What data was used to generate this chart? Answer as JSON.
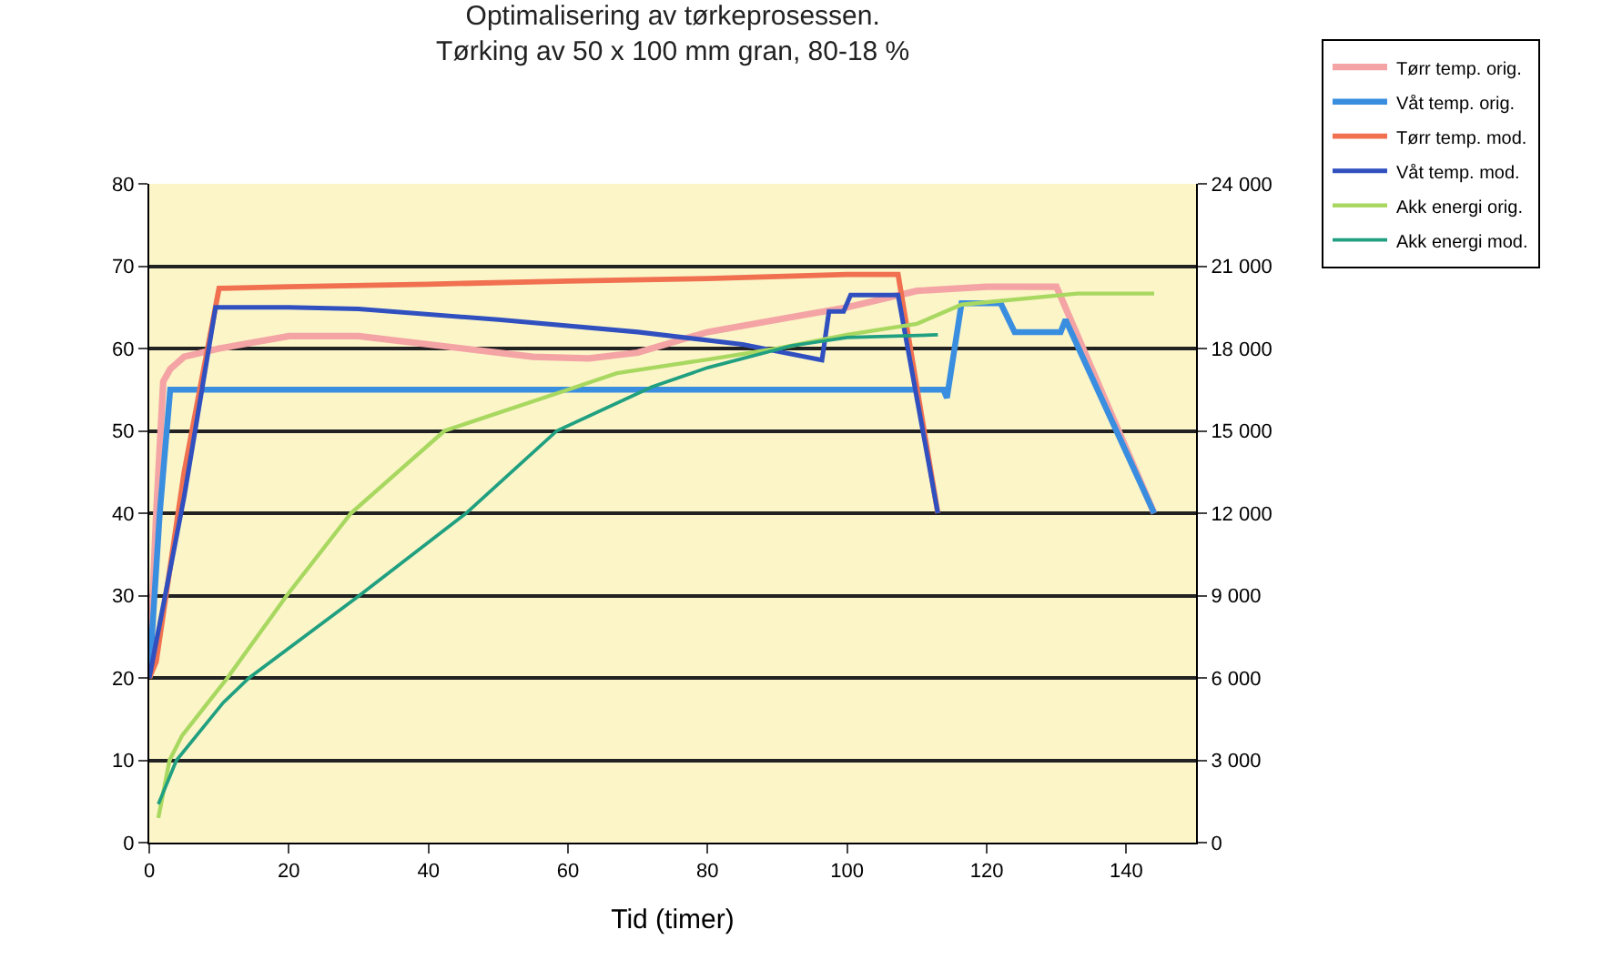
{
  "chart_data": {
    "type": "line",
    "title": "Optimalisering av tørkeprosessen.\nTørking av 50 x 100 mm gran, 80-18 %",
    "xlabel": "Tid (timer)",
    "xlim": [
      0,
      150
    ],
    "xticks": [
      0,
      20,
      40,
      60,
      80,
      100,
      120,
      140
    ],
    "ylim": [
      0,
      80
    ],
    "yticks": [
      0,
      10,
      20,
      30,
      40,
      50,
      60,
      70,
      80
    ],
    "y2lim": [
      0,
      24000
    ],
    "y2ticks": [
      {
        "value": 0,
        "label": "0"
      },
      {
        "value": 3000,
        "label": "3 000"
      },
      {
        "value": 6000,
        "label": "6 000"
      },
      {
        "value": 9000,
        "label": "9 000"
      },
      {
        "value": 12000,
        "label": "12 000"
      },
      {
        "value": 15000,
        "label": "15 000"
      },
      {
        "value": 18000,
        "label": "18 000"
      },
      {
        "value": 21000,
        "label": "21 000"
      },
      {
        "value": 24000,
        "label": "24 000"
      }
    ],
    "grid": "y",
    "legend": "top right",
    "marker": "none",
    "line_style": "solid",
    "series": [
      {
        "name": "Tørr temp. orig.",
        "color": "#f4a4a4",
        "x": [
          0,
          1,
          2,
          3,
          5,
          10,
          20,
          30,
          45,
          55,
          63,
          70,
          80,
          90,
          100,
          110,
          120,
          130,
          144
        ],
        "values": [
          20,
          40,
          56,
          57.5,
          59,
          60,
          61.5,
          61.5,
          60,
          59,
          58.8,
          59.5,
          62,
          63.5,
          65,
          67,
          67.5,
          67.5,
          40
        ]
      },
      {
        "name": "Våt temp. orig.",
        "color": "#3a8ee0",
        "x": [
          0,
          1.5,
          3,
          10,
          50,
          100,
          113.8,
          114.3,
          116.4,
          122,
          124,
          130.6,
          131.3,
          144
        ],
        "values": [
          20,
          40,
          55,
          55,
          55,
          55,
          55,
          54,
          65.5,
          65.5,
          62,
          62,
          63.5,
          40
        ]
      },
      {
        "name": "Tørr temp. mod.",
        "color": "#f07050",
        "x": [
          0,
          1,
          5,
          10,
          20,
          40,
          60,
          80,
          100,
          107.3,
          113
        ],
        "values": [
          20,
          22,
          45,
          67.3,
          67.5,
          67.8,
          68.2,
          68.5,
          69,
          69,
          40
        ]
      },
      {
        "name": "Våt temp. mod.",
        "color": "#3050c0",
        "x": [
          0,
          5,
          9.5,
          20,
          30,
          50,
          70,
          85,
          96.4,
          97.4,
          99.5,
          100.5,
          102.6,
          107.3,
          113
        ],
        "values": [
          20,
          42,
          65,
          65,
          64.8,
          63.5,
          62,
          60.5,
          58.6,
          64.5,
          64.5,
          66.5,
          66.5,
          66.5,
          40
        ]
      },
      {
        "name": "Akk energi orig.",
        "color": "#a8d860",
        "axis": "y2",
        "x": [
          1.3,
          2.9,
          4.7,
          11.2,
          19.7,
          28.9,
          42.3,
          60,
          67,
          80,
          90,
          100,
          110,
          116.4,
          133,
          144
        ],
        "values": [
          900,
          3000,
          3900,
          6000,
          9000,
          12000,
          15000,
          16500,
          17100,
          17600,
          18000,
          18500,
          18900,
          19600,
          20000,
          20000
        ]
      },
      {
        "name": "Akk energi mod.",
        "color": "#20a080",
        "axis": "y2",
        "x": [
          1.3,
          3.9,
          10.6,
          14.3,
          30.1,
          45.4,
          58.4,
          72,
          80,
          92,
          100,
          113
        ],
        "values": [
          1400,
          3000,
          5100,
          6000,
          9000,
          12000,
          15000,
          16600,
          17300,
          18100,
          18400,
          18500
        ]
      }
    ]
  }
}
